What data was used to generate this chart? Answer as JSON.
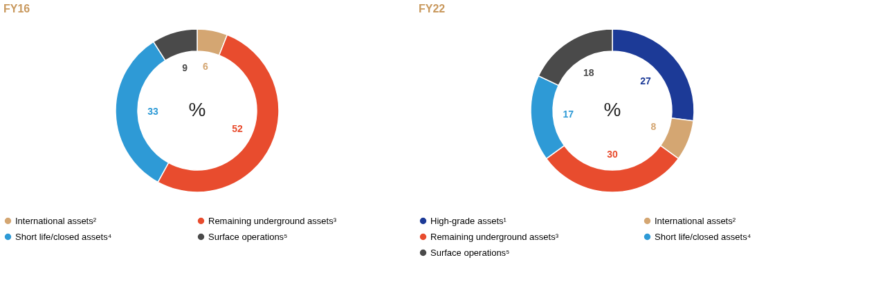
{
  "chart_data": [
    {
      "type": "donut",
      "title": "FY16",
      "annotations": [
        "%"
      ],
      "data_labels": true,
      "legend": "bottom",
      "categories": [
        "International assets²",
        "Remaining underground assets³",
        "Short life/closed assets⁴",
        "Surface operations⁵"
      ],
      "values": [
        6,
        52,
        33,
        9
      ],
      "colors": [
        "#d4a672",
        "#e84c2e",
        "#2e9ad6",
        "#4a4a4a"
      ]
    },
    {
      "type": "donut",
      "title": "FY22",
      "annotations": [
        "%"
      ],
      "data_labels": true,
      "legend": "bottom",
      "categories": [
        "High-grade assets¹",
        "International assets²",
        "Remaining underground assets³",
        "Short life/closed assets⁴",
        "Surface operations⁵"
      ],
      "values": [
        27,
        8,
        30,
        17,
        18
      ],
      "colors": [
        "#1c3a97",
        "#d4a672",
        "#e84c2e",
        "#2e9ad6",
        "#4a4a4a"
      ]
    }
  ]
}
